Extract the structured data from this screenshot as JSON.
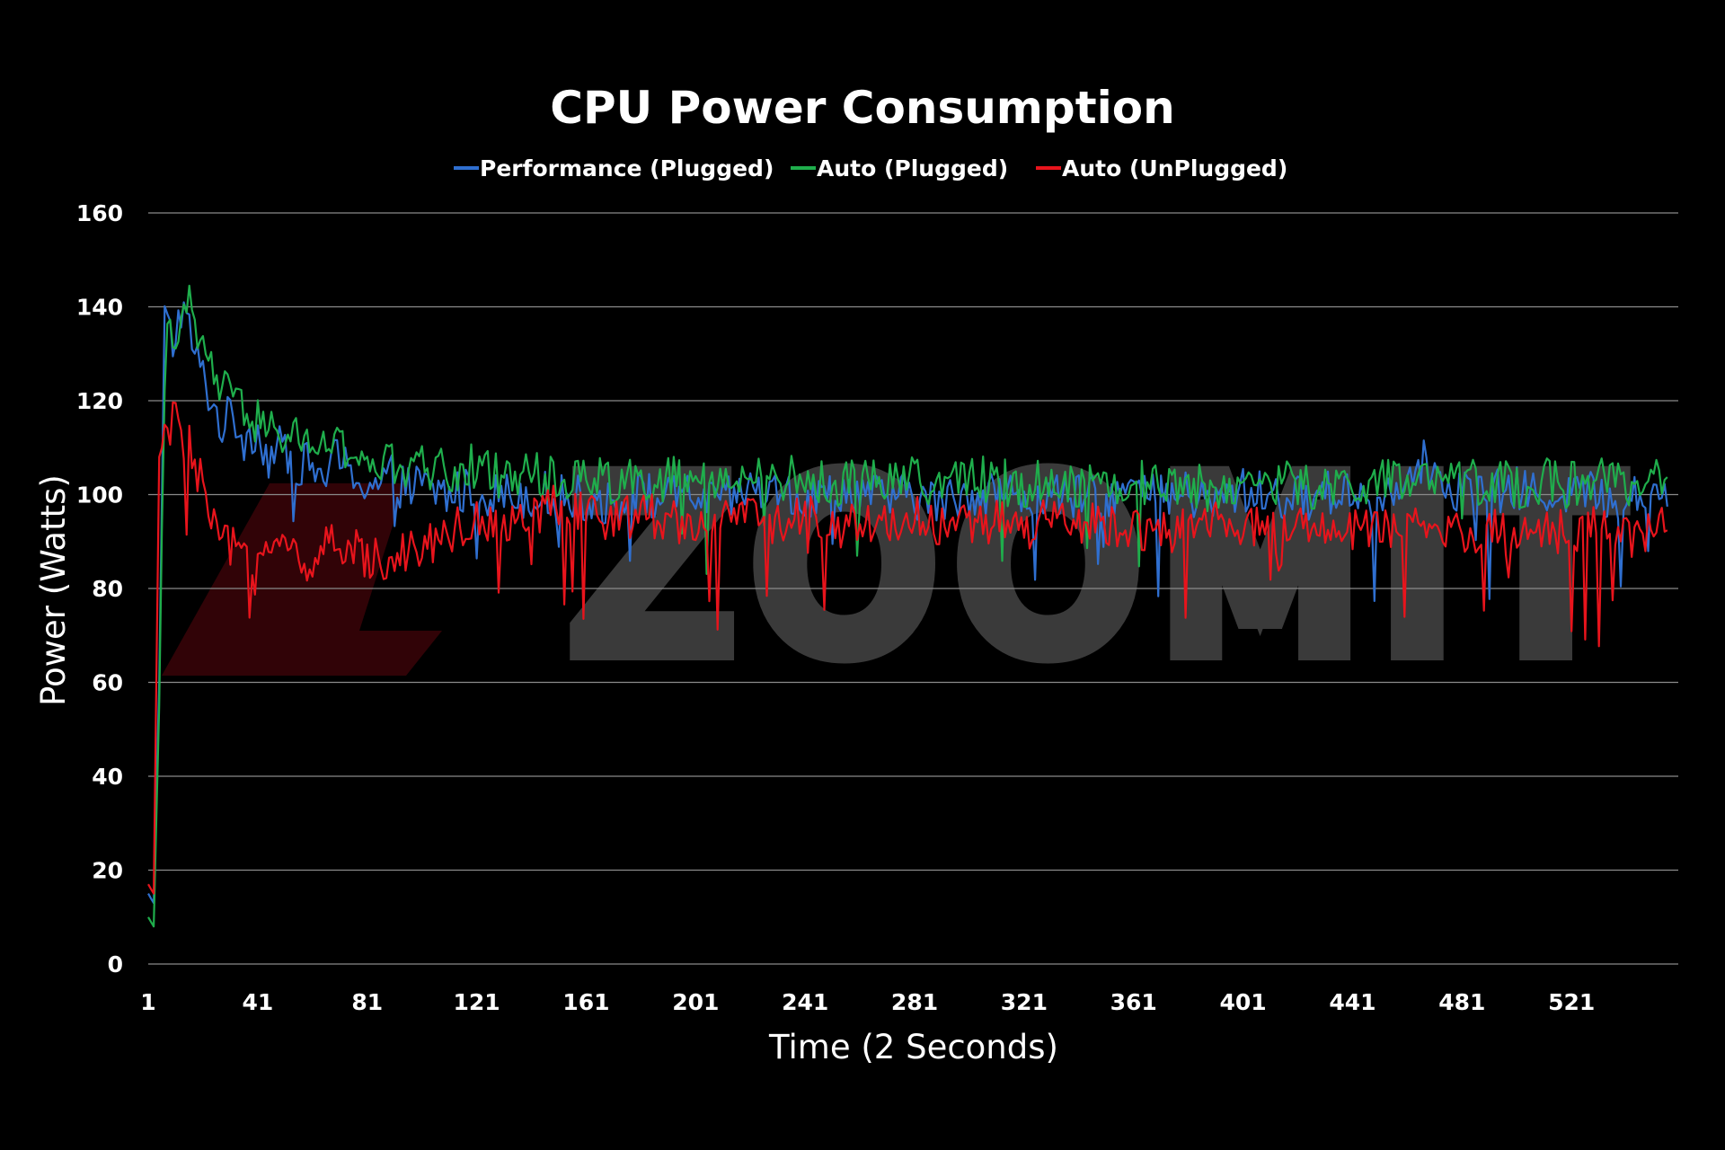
{
  "watermark": "ZOOMIT",
  "chart_data": {
    "type": "line",
    "title": "CPU Power Consumption",
    "xlabel": "Time (2 Seconds)",
    "ylabel": "Power (Watts)",
    "xlim": [
      1,
      560
    ],
    "ylim": [
      0,
      160
    ],
    "yticks": [
      0,
      20,
      40,
      60,
      80,
      100,
      120,
      140,
      160
    ],
    "xticks": [
      1,
      41,
      81,
      121,
      161,
      201,
      241,
      281,
      321,
      361,
      401,
      441,
      481,
      521
    ],
    "grid": true,
    "legend_position": "top-center",
    "colors": {
      "background": "#000000",
      "grid": "#8a8a8a",
      "text": "#ffffff"
    },
    "series": [
      {
        "name": "Performance (Plugged)",
        "color": "#2f6fd0",
        "points": [
          [
            1,
            15
          ],
          [
            3,
            13
          ],
          [
            5,
            60
          ],
          [
            7,
            138
          ],
          [
            10,
            132
          ],
          [
            13,
            140
          ],
          [
            16,
            135
          ],
          [
            19,
            128
          ],
          [
            22,
            124
          ],
          [
            25,
            118
          ],
          [
            28,
            115
          ],
          [
            32,
            117
          ],
          [
            36,
            112
          ],
          [
            40,
            114
          ],
          [
            45,
            108
          ],
          [
            50,
            110
          ],
          [
            55,
            107
          ],
          [
            60,
            106
          ],
          [
            65,
            104
          ],
          [
            70,
            108
          ],
          [
            75,
            104
          ],
          [
            80,
            103
          ],
          [
            85,
            102
          ],
          [
            90,
            104
          ],
          [
            95,
            101
          ],
          [
            100,
            102
          ],
          [
            110,
            100
          ],
          [
            120,
            101
          ],
          [
            130,
            100
          ],
          [
            140,
            100
          ],
          [
            150,
            100
          ],
          [
            160,
            99
          ],
          [
            170,
            98
          ],
          [
            180,
            100
          ],
          [
            190,
            99
          ],
          [
            200,
            100
          ],
          [
            210,
            98
          ],
          [
            220,
            101
          ],
          [
            230,
            100
          ],
          [
            240,
            99
          ],
          [
            250,
            100
          ],
          [
            260,
            101
          ],
          [
            270,
            99
          ],
          [
            280,
            100
          ],
          [
            290,
            98
          ],
          [
            300,
            100
          ],
          [
            310,
            101
          ],
          [
            320,
            99
          ],
          [
            330,
            100
          ],
          [
            340,
            99
          ],
          [
            350,
            100
          ],
          [
            360,
            101
          ],
          [
            370,
            99
          ],
          [
            380,
            100
          ],
          [
            390,
            98
          ],
          [
            400,
            101
          ],
          [
            410,
            100
          ],
          [
            420,
            99
          ],
          [
            430,
            100
          ],
          [
            440,
            101
          ],
          [
            450,
            99
          ],
          [
            460,
            104
          ],
          [
            465,
            108
          ],
          [
            470,
            105
          ],
          [
            480,
            101
          ],
          [
            490,
            100
          ],
          [
            500,
            101
          ],
          [
            510,
            100
          ],
          [
            520,
            101
          ],
          [
            530,
            100
          ],
          [
            540,
            99
          ],
          [
            550,
            100
          ],
          [
            556,
            101
          ]
        ]
      },
      {
        "name": "Auto (Plugged)",
        "color": "#1fae4c",
        "points": [
          [
            1,
            10
          ],
          [
            3,
            8
          ],
          [
            5,
            55
          ],
          [
            7,
            130
          ],
          [
            10,
            136
          ],
          [
            13,
            135
          ],
          [
            16,
            140
          ],
          [
            19,
            133
          ],
          [
            22,
            130
          ],
          [
            25,
            126
          ],
          [
            28,
            122
          ],
          [
            32,
            120
          ],
          [
            36,
            118
          ],
          [
            40,
            116
          ],
          [
            45,
            113
          ],
          [
            50,
            113
          ],
          [
            55,
            112
          ],
          [
            60,
            112
          ],
          [
            65,
            110
          ],
          [
            70,
            110
          ],
          [
            75,
            108
          ],
          [
            80,
            108
          ],
          [
            85,
            106
          ],
          [
            90,
            106
          ],
          [
            95,
            105
          ],
          [
            100,
            106
          ],
          [
            110,
            105
          ],
          [
            120,
            106
          ],
          [
            130,
            104
          ],
          [
            140,
            105
          ],
          [
            150,
            103
          ],
          [
            160,
            104
          ],
          [
            170,
            103
          ],
          [
            180,
            104
          ],
          [
            190,
            103
          ],
          [
            200,
            104
          ],
          [
            210,
            102
          ],
          [
            220,
            103
          ],
          [
            230,
            104
          ],
          [
            240,
            103
          ],
          [
            250,
            102
          ],
          [
            260,
            103
          ],
          [
            270,
            104
          ],
          [
            280,
            103
          ],
          [
            290,
            102
          ],
          [
            300,
            104
          ],
          [
            310,
            103
          ],
          [
            320,
            102
          ],
          [
            330,
            103
          ],
          [
            340,
            102
          ],
          [
            350,
            103
          ],
          [
            360,
            102
          ],
          [
            370,
            103
          ],
          [
            380,
            102
          ],
          [
            390,
            101
          ],
          [
            400,
            102
          ],
          [
            410,
            103
          ],
          [
            420,
            102
          ],
          [
            430,
            101
          ],
          [
            440,
            102
          ],
          [
            450,
            103
          ],
          [
            460,
            102
          ],
          [
            470,
            103
          ],
          [
            480,
            102
          ],
          [
            490,
            103
          ],
          [
            500,
            102
          ],
          [
            510,
            103
          ],
          [
            520,
            102
          ],
          [
            530,
            103
          ],
          [
            540,
            102
          ],
          [
            550,
            103
          ],
          [
            556,
            104
          ]
        ]
      },
      {
        "name": "Auto (UnPlugged)",
        "color": "#e8141c",
        "points": [
          [
            1,
            17
          ],
          [
            3,
            15
          ],
          [
            5,
            108
          ],
          [
            7,
            112
          ],
          [
            10,
            116
          ],
          [
            13,
            113
          ],
          [
            16,
            110
          ],
          [
            19,
            104
          ],
          [
            22,
            100
          ],
          [
            25,
            92
          ],
          [
            28,
            90
          ],
          [
            32,
            88
          ],
          [
            36,
            87
          ],
          [
            40,
            88
          ],
          [
            45,
            90
          ],
          [
            50,
            88
          ],
          [
            55,
            87
          ],
          [
            60,
            86
          ],
          [
            65,
            88
          ],
          [
            70,
            89
          ],
          [
            75,
            88
          ],
          [
            80,
            87
          ],
          [
            85,
            86
          ],
          [
            90,
            88
          ],
          [
            95,
            88
          ],
          [
            100,
            89
          ],
          [
            110,
            92
          ],
          [
            120,
            94
          ],
          [
            130,
            95
          ],
          [
            140,
            96
          ],
          [
            150,
            97
          ],
          [
            160,
            96
          ],
          [
            170,
            95
          ],
          [
            180,
            96
          ],
          [
            190,
            95
          ],
          [
            200,
            94
          ],
          [
            210,
            94
          ],
          [
            220,
            95
          ],
          [
            230,
            94
          ],
          [
            240,
            95
          ],
          [
            250,
            94
          ],
          [
            260,
            93
          ],
          [
            270,
            94
          ],
          [
            280,
            95
          ],
          [
            290,
            94
          ],
          [
            300,
            93
          ],
          [
            310,
            94
          ],
          [
            320,
            93
          ],
          [
            330,
            94
          ],
          [
            340,
            93
          ],
          [
            350,
            94
          ],
          [
            360,
            93
          ],
          [
            370,
            92
          ],
          [
            380,
            93
          ],
          [
            390,
            94
          ],
          [
            400,
            93
          ],
          [
            410,
            92
          ],
          [
            420,
            93
          ],
          [
            430,
            92
          ],
          [
            440,
            93
          ],
          [
            450,
            92
          ],
          [
            460,
            93
          ],
          [
            470,
            92
          ],
          [
            480,
            93
          ],
          [
            490,
            92
          ],
          [
            500,
            92
          ],
          [
            510,
            93
          ],
          [
            520,
            92
          ],
          [
            530,
            93
          ],
          [
            540,
            92
          ],
          [
            550,
            91
          ],
          [
            556,
            93
          ]
        ]
      }
    ]
  }
}
